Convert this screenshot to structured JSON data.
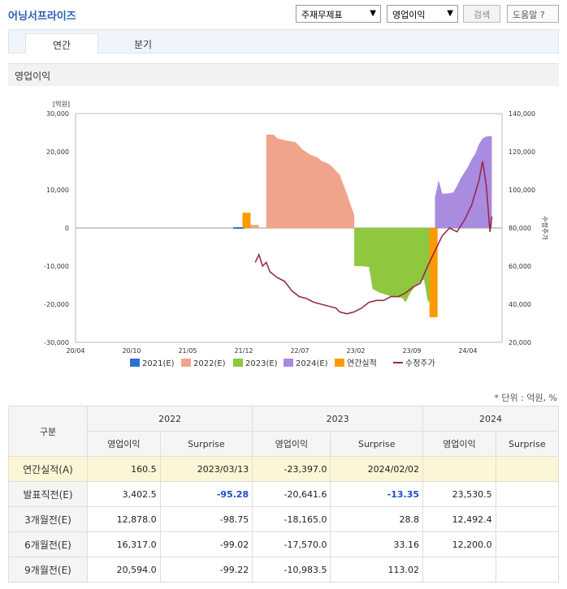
{
  "header": {
    "title": "어닝서프라이즈",
    "select_type": "주재무제표",
    "select_item": "영업이익",
    "search_label": "검색",
    "help_label": "도움말"
  },
  "tabs": [
    "연간",
    "분기"
  ],
  "section_title": "영업이익",
  "chart_data": {
    "type": "area",
    "yunit": "[억원]",
    "y2label": "수정주가",
    "ylim": [
      -30000,
      30000
    ],
    "y2lim": [
      20000,
      140000
    ],
    "yticks": [
      "30,000",
      "20,000",
      "10,000",
      "0",
      "-10,000",
      "-20,000",
      "-30,000"
    ],
    "y2ticks": [
      "140,000",
      "120,000",
      "100,000",
      "80,000",
      "60,000",
      "40,000",
      "20,000"
    ],
    "xticks": [
      "20/04",
      "20/10",
      "21/05",
      "21/12",
      "22/07",
      "23/02",
      "23/09",
      "24/04"
    ],
    "legend": [
      "2021(E)",
      "2022(E)",
      "2023(E)",
      "2024(E)",
      "연간실적",
      "수정주가"
    ],
    "colors": {
      "e2021": "#2e6fd6",
      "e2022": "#f0a48c",
      "e2023": "#8fc73e",
      "e2024": "#a98be0",
      "actual": "#ff9900",
      "price": "#9a2a4a"
    },
    "actual_bars": [
      {
        "period": "2022",
        "value": 160.5
      },
      {
        "period": "2023",
        "value": -23397.0
      }
    ],
    "estimates": {
      "e2022": [
        [
          0.52,
          24500
        ],
        [
          0.54,
          24500
        ],
        [
          0.55,
          23500
        ],
        [
          0.57,
          23000
        ],
        [
          0.6,
          22500
        ],
        [
          0.62,
          20500
        ],
        [
          0.64,
          19200
        ],
        [
          0.66,
          18500
        ],
        [
          0.67,
          17600
        ],
        [
          0.69,
          16800
        ],
        [
          0.7,
          16000
        ],
        [
          0.72,
          14000
        ],
        [
          0.73,
          11500
        ],
        [
          0.74,
          9000
        ],
        [
          0.75,
          6000
        ],
        [
          0.76,
          3400
        ]
      ],
      "e2023": [
        [
          0.76,
          -10000
        ],
        [
          0.78,
          -10000
        ],
        [
          0.8,
          -10200
        ],
        [
          0.81,
          -16000
        ],
        [
          0.83,
          -17000
        ],
        [
          0.85,
          -17600
        ],
        [
          0.87,
          -18100
        ],
        [
          0.89,
          -18300
        ],
        [
          0.9,
          -19500
        ],
        [
          0.91,
          -17500
        ],
        [
          0.92,
          -16000
        ],
        [
          0.935,
          -14500
        ],
        [
          0.95,
          -13500
        ],
        [
          0.96,
          -19000
        ],
        [
          0.97,
          -20200
        ],
        [
          0.98,
          -20600
        ]
      ],
      "e2024": [
        [
          0.98,
          8000
        ],
        [
          0.99,
          12500
        ],
        [
          1.0,
          9000
        ],
        [
          1.01,
          9000
        ],
        [
          1.03,
          9300
        ],
        [
          1.04,
          11000
        ],
        [
          1.05,
          13000
        ],
        [
          1.06,
          14500
        ],
        [
          1.07,
          16000
        ],
        [
          1.08,
          18000
        ],
        [
          1.09,
          19500
        ],
        [
          1.1,
          22000
        ],
        [
          1.11,
          23500
        ],
        [
          1.12,
          24000
        ],
        [
          1.13,
          24100
        ],
        [
          1.135,
          24100
        ]
      ]
    },
    "price": [
      [
        0.49,
        62000
      ],
      [
        0.5,
        66000
      ],
      [
        0.51,
        60000
      ],
      [
        0.52,
        62000
      ],
      [
        0.53,
        57000
      ],
      [
        0.55,
        54000
      ],
      [
        0.57,
        52000
      ],
      [
        0.59,
        47000
      ],
      [
        0.61,
        44000
      ],
      [
        0.63,
        43000
      ],
      [
        0.65,
        41000
      ],
      [
        0.67,
        40000
      ],
      [
        0.69,
        39000
      ],
      [
        0.71,
        38000
      ],
      [
        0.72,
        36000
      ],
      [
        0.74,
        35000
      ],
      [
        0.76,
        36000
      ],
      [
        0.78,
        38000
      ],
      [
        0.8,
        41000
      ],
      [
        0.82,
        42000
      ],
      [
        0.84,
        42000
      ],
      [
        0.86,
        44000
      ],
      [
        0.88,
        44000
      ],
      [
        0.9,
        46000
      ],
      [
        0.92,
        49000
      ],
      [
        0.94,
        51000
      ],
      [
        0.96,
        60000
      ],
      [
        0.98,
        68000
      ],
      [
        1.0,
        76000
      ],
      [
        1.02,
        80000
      ],
      [
        1.04,
        78000
      ],
      [
        1.06,
        84000
      ],
      [
        1.08,
        92000
      ],
      [
        1.1,
        105000
      ],
      [
        1.11,
        115000
      ],
      [
        1.12,
        102000
      ],
      [
        1.13,
        78000
      ],
      [
        1.135,
        86000
      ]
    ]
  },
  "unit_note": "* 단위 : 억원, %",
  "table": {
    "corner": "구분",
    "years": [
      "2022",
      "2023",
      "2024"
    ],
    "subheaders": [
      "영업이익",
      "Surprise",
      "영업이익",
      "Surprise",
      "영업이익",
      "Surprise"
    ],
    "rows": [
      {
        "label": "연간실적(A)",
        "cells": [
          "160.5",
          "2023/03/13",
          "-23,397.0",
          "2024/02/02",
          "",
          ""
        ]
      },
      {
        "label": "발표직전(E)",
        "cells": [
          "3,402.5",
          "-95.28",
          "-20,641.6",
          "-13.35",
          "23,530.5",
          ""
        ]
      },
      {
        "label": "3개월전(E)",
        "cells": [
          "12,878.0",
          "-98.75",
          "-18,165.0",
          "28.8",
          "12,492.4",
          ""
        ]
      },
      {
        "label": "6개월전(E)",
        "cells": [
          "16,317.0",
          "-99.02",
          "-17,570.0",
          "33.16",
          "12,200.0",
          ""
        ]
      },
      {
        "label": "9개월전(E)",
        "cells": [
          "20,594.0",
          "-99.22",
          "-10,983.5",
          "113.02",
          "",
          ""
        ]
      }
    ]
  }
}
